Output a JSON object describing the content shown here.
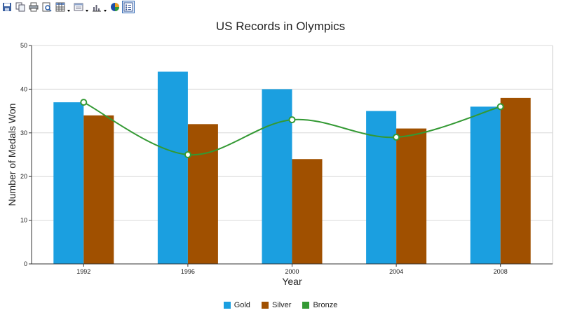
{
  "toolbar": {
    "buttons": [
      {
        "name": "save-icon"
      },
      {
        "name": "copy-icon"
      },
      {
        "name": "print-icon"
      },
      {
        "name": "print-preview-icon"
      },
      {
        "name": "data-grid-icon",
        "dropdown": true
      },
      {
        "name": "properties-icon",
        "dropdown": true
      },
      {
        "name": "chart-type-icon",
        "dropdown": true
      },
      {
        "name": "palette-icon"
      },
      {
        "name": "legend-toggle-icon",
        "active": true
      }
    ]
  },
  "chart_data": {
    "type": "bar",
    "title": "US Records in Olympics",
    "xlabel": "Year",
    "ylabel": "Number of Medals Won",
    "categories": [
      "1992",
      "1996",
      "2000",
      "2004",
      "2008"
    ],
    "ylim": [
      0,
      50
    ],
    "yticks": [
      0,
      10,
      20,
      30,
      40,
      50
    ],
    "grid": true,
    "legend_position": "bottom",
    "series": [
      {
        "name": "Gold",
        "kind": "bar",
        "color": "#1b9fe0",
        "values": [
          37,
          44,
          40,
          35,
          36
        ]
      },
      {
        "name": "Silver",
        "kind": "bar",
        "color": "#a05000",
        "values": [
          34,
          32,
          24,
          31,
          38
        ]
      },
      {
        "name": "Bronze",
        "kind": "spline",
        "color": "#339933",
        "values": [
          37,
          25,
          33,
          29,
          36
        ]
      }
    ]
  }
}
